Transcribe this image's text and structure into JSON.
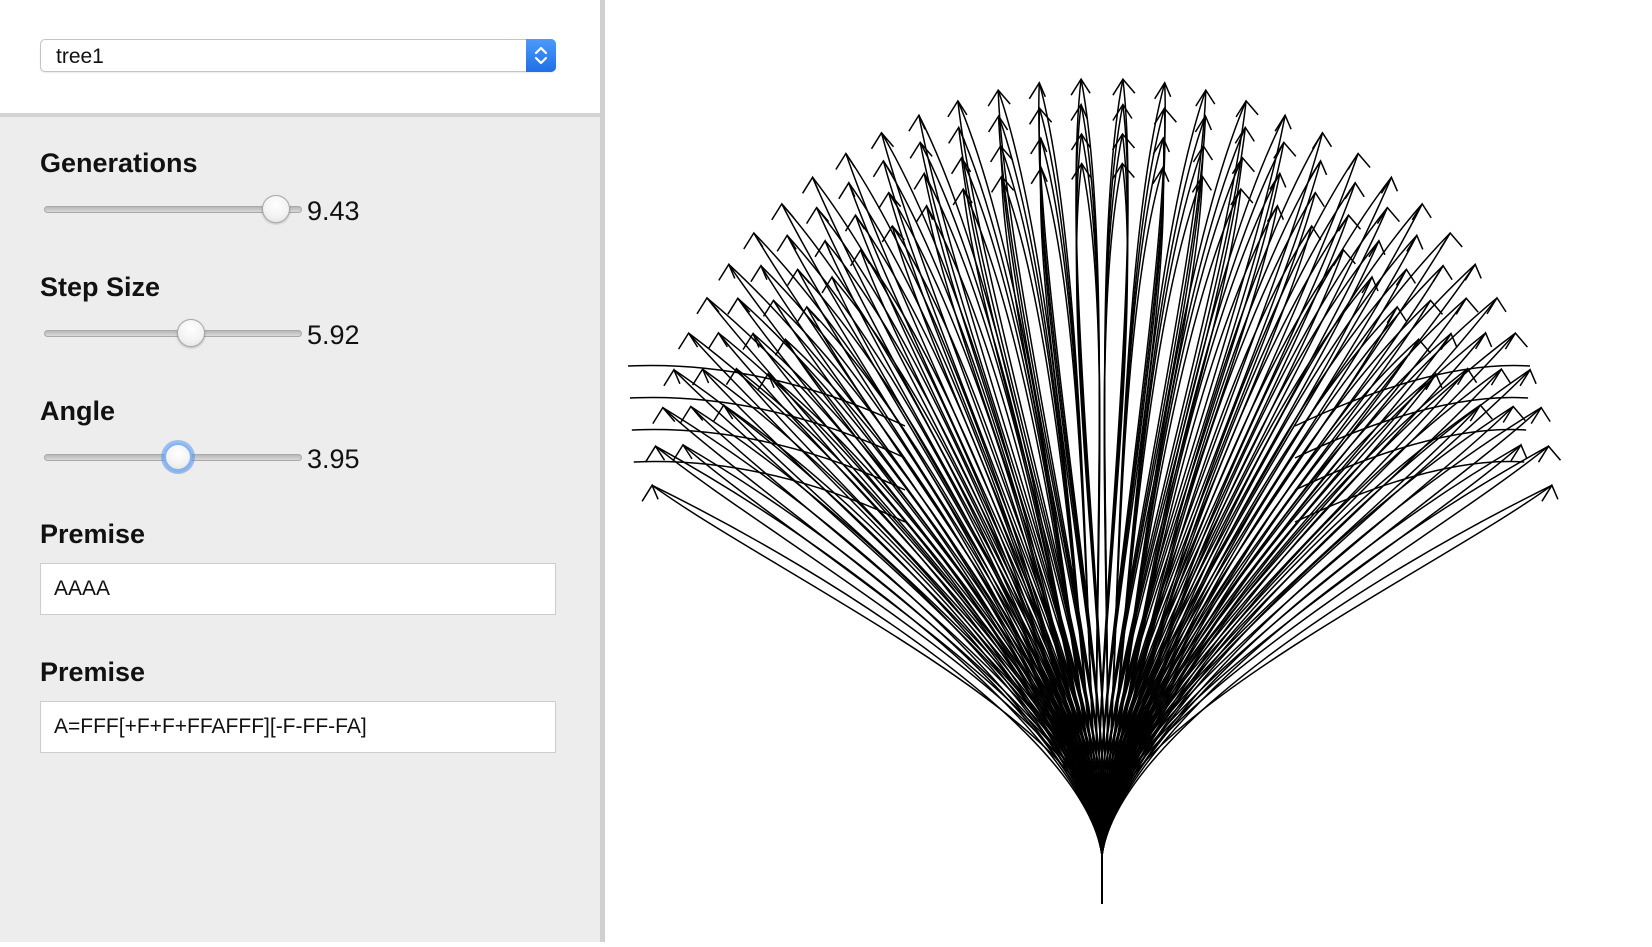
{
  "preset": {
    "selected": "tree1"
  },
  "controls": {
    "generations": {
      "label": "Generations",
      "value": "9.43",
      "fraction": 0.9
    },
    "step_size": {
      "label": "Step Size",
      "value": "5.92",
      "fraction": 0.57
    },
    "angle": {
      "label": "Angle",
      "value": "3.95",
      "fraction": 0.52
    }
  },
  "premise": {
    "label": "Premise",
    "value": "AAAA"
  },
  "rule": {
    "label": "Premise",
    "value": "A=FFF[+F+F+FFAFFF][-F-FF-FA]"
  },
  "canvas": {
    "stroke_color": "#000000"
  }
}
